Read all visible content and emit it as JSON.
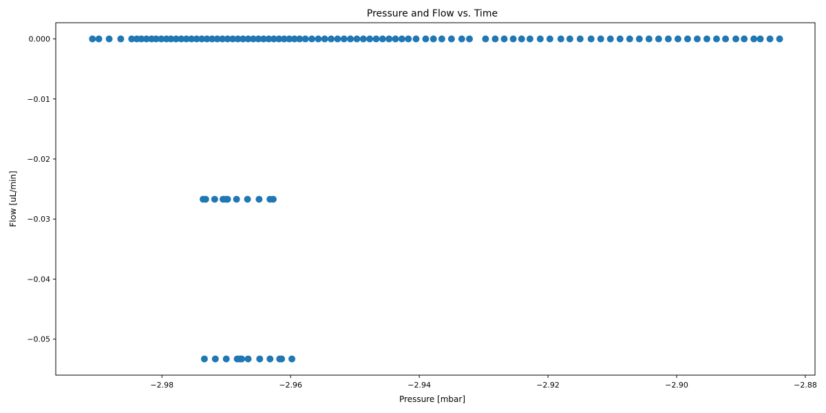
{
  "chart_data": {
    "type": "scatter",
    "title": "Pressure and Flow vs. Time",
    "xlabel": "Pressure [mbar]",
    "ylabel": "Flow [uL/min]",
    "xlim": [
      -2.9965,
      -2.8785
    ],
    "ylim": [
      -0.056,
      0.0027
    ],
    "xticks": [
      -2.98,
      -2.96,
      -2.94,
      -2.92,
      -2.9,
      -2.88
    ],
    "xtick_labels": [
      "−2.98",
      "−2.96",
      "−2.94",
      "−2.92",
      "−2.90",
      "−2.88"
    ],
    "yticks": [
      0.0,
      -0.01,
      -0.02,
      -0.03,
      -0.04,
      -0.05
    ],
    "ytick_labels": [
      "0.000",
      "−0.01",
      "−0.02",
      "−0.03",
      "−0.04",
      "−0.05"
    ],
    "grid": false,
    "marker_color": "#1f77b4",
    "series": [
      {
        "name": "Flow",
        "points": [
          [
            -2.9908,
            0.0
          ],
          [
            -2.9898,
            0.0
          ],
          [
            -2.9882,
            0.0
          ],
          [
            -2.9864,
            0.0
          ],
          [
            -2.9847,
            0.0
          ],
          [
            -2.9839,
            0.0
          ],
          [
            -2.9832,
            0.0
          ],
          [
            -2.9824,
            0.0
          ],
          [
            -2.9816,
            0.0
          ],
          [
            -2.9809,
            0.0
          ],
          [
            -2.9801,
            0.0
          ],
          [
            -2.9793,
            0.0
          ],
          [
            -2.9786,
            0.0
          ],
          [
            -2.9778,
            0.0
          ],
          [
            -2.977,
            0.0
          ],
          [
            -2.9762,
            0.0
          ],
          [
            -2.9754,
            0.0
          ],
          [
            -2.9746,
            0.0
          ],
          [
            -2.9738,
            0.0
          ],
          [
            -2.973,
            0.0
          ],
          [
            -2.9722,
            0.0
          ],
          [
            -2.9714,
            0.0
          ],
          [
            -2.9706,
            0.0
          ],
          [
            -2.9698,
            0.0
          ],
          [
            -2.969,
            0.0
          ],
          [
            -2.9682,
            0.0
          ],
          [
            -2.9674,
            0.0
          ],
          [
            -2.9666,
            0.0
          ],
          [
            -2.9658,
            0.0
          ],
          [
            -2.965,
            0.0
          ],
          [
            -2.9642,
            0.0
          ],
          [
            -2.9634,
            0.0
          ],
          [
            -2.9626,
            0.0
          ],
          [
            -2.9618,
            0.0
          ],
          [
            -2.961,
            0.0
          ],
          [
            -2.9602,
            0.0
          ],
          [
            -2.9594,
            0.0
          ],
          [
            -2.9586,
            0.0
          ],
          [
            -2.9577,
            0.0
          ],
          [
            -2.9567,
            0.0
          ],
          [
            -2.9557,
            0.0
          ],
          [
            -2.9547,
            0.0
          ],
          [
            -2.9537,
            0.0
          ],
          [
            -2.9527,
            0.0
          ],
          [
            -2.9517,
            0.0
          ],
          [
            -2.9507,
            0.0
          ],
          [
            -2.9497,
            0.0
          ],
          [
            -2.9487,
            0.0
          ],
          [
            -2.9477,
            0.0
          ],
          [
            -2.9467,
            0.0
          ],
          [
            -2.9457,
            0.0
          ],
          [
            -2.9447,
            0.0
          ],
          [
            -2.9437,
            0.0
          ],
          [
            -2.9427,
            0.0
          ],
          [
            -2.9417,
            0.0
          ],
          [
            -2.9405,
            0.0
          ],
          [
            -2.939,
            0.0
          ],
          [
            -2.9378,
            0.0
          ],
          [
            -2.9365,
            0.0
          ],
          [
            -2.935,
            0.0
          ],
          [
            -2.9334,
            0.0
          ],
          [
            -2.9322,
            0.0
          ],
          [
            -2.9297,
            0.0
          ],
          [
            -2.9282,
            0.0
          ],
          [
            -2.9268,
            0.0
          ],
          [
            -2.9254,
            0.0
          ],
          [
            -2.9241,
            0.0
          ],
          [
            -2.9228,
            0.0
          ],
          [
            -2.9212,
            0.0
          ],
          [
            -2.9197,
            0.0
          ],
          [
            -2.918,
            0.0
          ],
          [
            -2.9166,
            0.0
          ],
          [
            -2.915,
            0.0
          ],
          [
            -2.9133,
            0.0
          ],
          [
            -2.9118,
            0.0
          ],
          [
            -2.9103,
            0.0
          ],
          [
            -2.9088,
            0.0
          ],
          [
            -2.9073,
            0.0
          ],
          [
            -2.9058,
            0.0
          ],
          [
            -2.9043,
            0.0
          ],
          [
            -2.9028,
            0.0
          ],
          [
            -2.9013,
            0.0
          ],
          [
            -2.8998,
            0.0
          ],
          [
            -2.8983,
            0.0
          ],
          [
            -2.8968,
            0.0
          ],
          [
            -2.8953,
            0.0
          ],
          [
            -2.8938,
            0.0
          ],
          [
            -2.8924,
            0.0
          ],
          [
            -2.8908,
            0.0
          ],
          [
            -2.8895,
            0.0
          ],
          [
            -2.888,
            0.0
          ],
          [
            -2.887,
            0.0
          ],
          [
            -2.8855,
            0.0
          ],
          [
            -2.884,
            0.0
          ],
          [
            -2.9736,
            -0.0267
          ],
          [
            -2.9732,
            -0.0267
          ],
          [
            -2.9718,
            -0.0267
          ],
          [
            -2.9705,
            -0.0267
          ],
          [
            -2.9701,
            -0.0267
          ],
          [
            -2.9698,
            -0.0267
          ],
          [
            -2.9684,
            -0.0267
          ],
          [
            -2.9667,
            -0.0267
          ],
          [
            -2.9649,
            -0.0267
          ],
          [
            -2.9632,
            -0.0267
          ],
          [
            -2.9627,
            -0.0267
          ],
          [
            -2.9734,
            -0.0533
          ],
          [
            -2.9717,
            -0.0533
          ],
          [
            -2.97,
            -0.0533
          ],
          [
            -2.9683,
            -0.0533
          ],
          [
            -2.9679,
            -0.0533
          ],
          [
            -2.9676,
            -0.0533
          ],
          [
            -2.9666,
            -0.0533
          ],
          [
            -2.9648,
            -0.0533
          ],
          [
            -2.9632,
            -0.0533
          ],
          [
            -2.9617,
            -0.0533
          ],
          [
            -2.9614,
            -0.0533
          ],
          [
            -2.9598,
            -0.0533
          ]
        ]
      }
    ]
  }
}
